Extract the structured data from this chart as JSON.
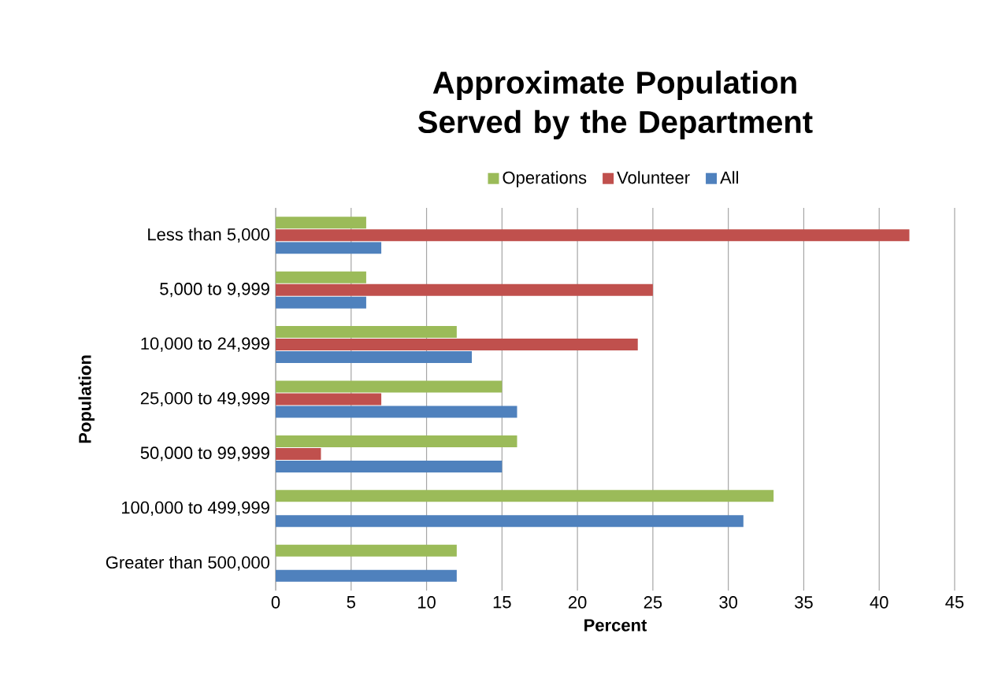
{
  "chart_data": {
    "type": "bar",
    "orientation": "horizontal",
    "title": "Approximate Population Served by the Department",
    "xlabel": "Percent",
    "ylabel": "Population",
    "categories": [
      "Less than 5,000",
      "5,000 to 9,999",
      "10,000 to 24,999",
      "25,000 to 49,999",
      "50,000 to 99,999",
      "100,000 to 499,999",
      "Greater than 500,000"
    ],
    "series": [
      {
        "name": "Operations",
        "color": "#9bbb59",
        "values": [
          6,
          6,
          12,
          15,
          16,
          33,
          12
        ]
      },
      {
        "name": "Volunteer",
        "color": "#c0504d",
        "values": [
          42,
          25,
          24,
          7,
          3,
          null,
          null
        ]
      },
      {
        "name": "All",
        "color": "#4f81bd",
        "values": [
          7,
          6,
          13,
          16,
          15,
          31,
          12
        ]
      }
    ],
    "xlim": [
      0,
      45
    ],
    "xticks": [
      0,
      5,
      10,
      15,
      20,
      25,
      30,
      35,
      40,
      45
    ],
    "grid": "x",
    "legend": "top"
  }
}
